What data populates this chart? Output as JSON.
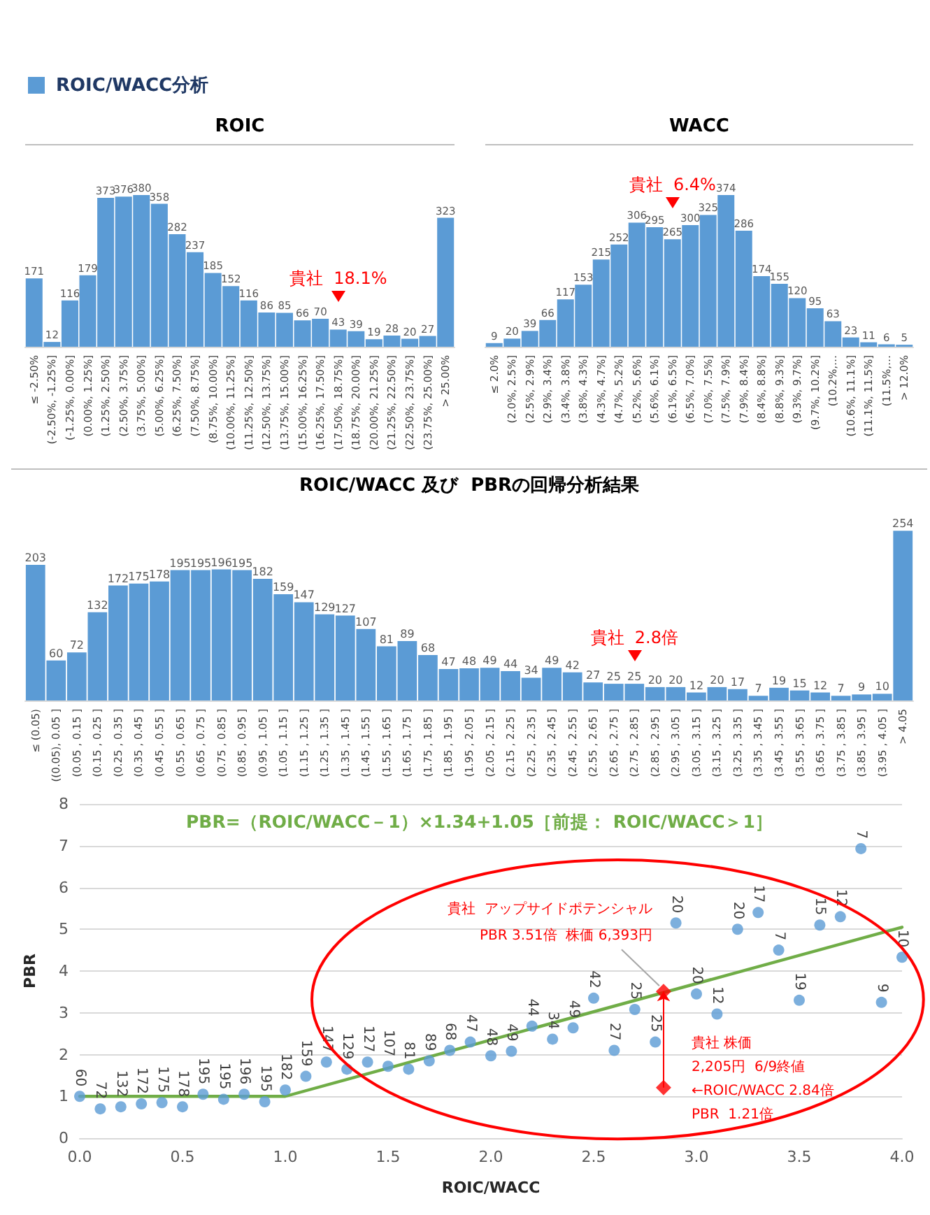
{
  "chart_data": [
    {
      "type": "bar",
      "title": "ROIC",
      "annotations": [
        "ROIC/WACC分析",
        {
          "text": "貴社  18.1%",
          "x": "(17.50%, 18.75%]",
          "y": 43
        }
      ],
      "categories": [
        "≤ -2.50%",
        "(-2.50%, -1.25%]",
        "(-1.25%, 0.00%]",
        "(0.00%, 1.25%]",
        "(1.25%, 2.50%]",
        "(2.50%, 3.75%]",
        "(3.75%, 5.00%]",
        "(5.00%, 6.25%]",
        "(6.25%, 7.50%]",
        "(7.50%, 8.75%]",
        "(8.75%, 10.00%]",
        "(10.00%, 11.25%]",
        "(11.25%, 12.50%]",
        "(12.50%, 13.75%]",
        "(13.75%, 15.00%]",
        "(15.00%, 16.25%]",
        "(16.25%, 17.50%]",
        "(17.50%, 18.75%]",
        "(18.75%, 20.00%]",
        "(20.00%, 21.25%]",
        "(21.25%, 22.50%]",
        "(22.50%, 23.75%]",
        "(23.75%, 25.00%]",
        "> 25.00%"
      ],
      "values": [
        171,
        12,
        116,
        179,
        373,
        376,
        380,
        358,
        282,
        237,
        185,
        152,
        116,
        86,
        85,
        66,
        70,
        43,
        39,
        19,
        28,
        20,
        27,
        323
      ],
      "color": "#5b9bd5",
      "data_labels": true
    },
    {
      "type": "bar",
      "title": "WACC",
      "annotations": [
        {
          "text": "貴社  6.4%",
          "x": "(6.1%, 6.5%]",
          "y": 265
        }
      ],
      "categories": [
        "≤ 2.0%",
        "(2.0%, 2.5%]",
        "(2.5%, 2.9%]",
        "(2.9%, 3.4%]",
        "(3.4%, 3.8%]",
        "(3.8%, 4.3%]",
        "(4.3%, 4.7%]",
        "(4.7%, 5.2%]",
        "(5.2%, 5.6%]",
        "(5.6%, 6.1%]",
        "(6.1%, 6.5%]",
        "(6.5%, 7.0%]",
        "(7.0%, 7.5%]",
        "(7.5%, 7.9%]",
        "(7.9%, 8.4%]",
        "(8.4%, 8.8%]",
        "(8.8%, 9.3%]",
        "(9.3%, 9.7%]",
        "(9.7%, 10.2%]",
        "(10.2%,…",
        "(10.6%, 11.1%]",
        "(11.1%, 11.5%]",
        "(11.5%,…",
        "> 12.0%"
      ],
      "values": [
        9,
        20,
        39,
        66,
        117,
        153,
        215,
        252,
        306,
        295,
        265,
        300,
        325,
        374,
        286,
        174,
        155,
        120,
        95,
        63,
        23,
        11,
        6,
        5
      ],
      "color": "#5b9bd5",
      "data_labels": true
    },
    {
      "type": "bar",
      "title": "ROIC/WACC 及び  PBRの回帰分析結果",
      "annotations": [
        {
          "text": "貴社  2.8倍",
          "x": "(2.75 , 2.85 ]",
          "y": 25
        }
      ],
      "categories": [
        "≤ (0.05)",
        "((0.05), 0.05 ]",
        "(0.05 , 0.15 ]",
        "(0.15 , 0.25 ]",
        "(0.25 , 0.35 ]",
        "(0.35 , 0.45 ]",
        "(0.45 , 0.55 ]",
        "(0.55 , 0.65 ]",
        "(0.65 , 0.75 ]",
        "(0.75 , 0.85 ]",
        "(0.85 , 0.95 ]",
        "(0.95 , 1.05 ]",
        "(1.05 , 1.15 ]",
        "(1.15 , 1.25 ]",
        "(1.25 , 1.35 ]",
        "(1.35 , 1.45 ]",
        "(1.45 , 1.55 ]",
        "(1.55 , 1.65 ]",
        "(1.65 , 1.75 ]",
        "(1.75 , 1.85 ]",
        "(1.85 , 1.95 ]",
        "(1.95 , 2.05 ]",
        "(2.05 , 2.15 ]",
        "(2.15 , 2.25 ]",
        "(2.25 , 2.35 ]",
        "(2.35 , 2.45 ]",
        "(2.45 , 2.55 ]",
        "(2.55 , 2.65 ]",
        "(2.65 , 2.75 ]",
        "(2.75 , 2.85 ]",
        "(2.85 , 2.95 ]",
        "(2.95 , 3.05 ]",
        "(3.05 , 3.15 ]",
        "(3.15 , 3.25 ]",
        "(3.25 , 3.35 ]",
        "(3.35 , 3.45 ]",
        "(3.45 , 3.55 ]",
        "(3.55 , 3.65 ]",
        "(3.65 , 3.75 ]",
        "(3.75 , 3.85 ]",
        "(3.85 , 3.95 ]",
        "(3.95 , 4.05 ]",
        "> 4.05"
      ],
      "values": [
        203,
        60,
        72,
        132,
        172,
        175,
        178,
        195,
        195,
        196,
        195,
        182,
        159,
        147,
        129,
        127,
        107,
        81,
        89,
        68,
        47,
        48,
        49,
        44,
        34,
        49,
        42,
        27,
        25,
        25,
        20,
        20,
        12,
        20,
        17,
        7,
        19,
        15,
        12,
        7,
        9,
        10,
        254
      ],
      "color": "#5b9bd5",
      "data_labels": true
    },
    {
      "type": "scatter",
      "xlabel": "ROIC/WACC",
      "ylabel": "PBR",
      "annotations": [
        "PBR=（ROIC/WACC－1）×1.34+1.05［前提： ROIC/WACC＞1］",
        {
          "text": "貴社  アップサイドポテンシャル\nPBR 3.51倍  株価 6,393円",
          "x": 2.84,
          "y": 3.51
        },
        {
          "text": "貴社 株価\n2,205円  6/9終値\n←ROIC/WACC 2.84倍\nPBR  1.21倍",
          "x": 2.84,
          "y": 1.21
        },
        {
          "text": "60",
          "x": 0,
          "y": 1.0
        },
        {
          "text": "72",
          "x": 0.1,
          "y": 0.7
        },
        {
          "text": "132",
          "x": 0.2,
          "y": 0.75
        },
        {
          "text": "172",
          "x": 0.3,
          "y": 0.82
        },
        {
          "text": "175",
          "x": 0.4,
          "y": 0.85
        },
        {
          "text": "178",
          "x": 0.5,
          "y": 0.75
        },
        {
          "text": "195",
          "x": 0.6,
          "y": 1.05
        },
        {
          "text": "195",
          "x": 0.7,
          "y": 0.93
        },
        {
          "text": "196",
          "x": 0.8,
          "y": 1.05
        },
        {
          "text": "195",
          "x": 0.9,
          "y": 0.87
        },
        {
          "text": "182",
          "x": 1.0,
          "y": 1.15
        },
        {
          "text": "159",
          "x": 1.1,
          "y": 1.48
        },
        {
          "text": "147",
          "x": 1.2,
          "y": 1.82
        },
        {
          "text": "129",
          "x": 1.3,
          "y": 1.65
        },
        {
          "text": "127",
          "x": 1.4,
          "y": 1.82
        },
        {
          "text": "107",
          "x": 1.5,
          "y": 1.72
        },
        {
          "text": "81",
          "x": 1.6,
          "y": 1.65
        },
        {
          "text": "89",
          "x": 1.7,
          "y": 1.85
        },
        {
          "text": "68",
          "x": 1.8,
          "y": 2.1
        },
        {
          "text": "47",
          "x": 1.9,
          "y": 2.3
        },
        {
          "text": "48",
          "x": 2.0,
          "y": 1.97
        },
        {
          "text": "49",
          "x": 2.1,
          "y": 2.08
        },
        {
          "text": "44",
          "x": 2.2,
          "y": 2.68
        },
        {
          "text": "34",
          "x": 2.3,
          "y": 2.37
        },
        {
          "text": "49",
          "x": 2.4,
          "y": 2.64
        },
        {
          "text": "42",
          "x": 2.5,
          "y": 3.35
        },
        {
          "text": "27",
          "x": 2.6,
          "y": 2.1
        },
        {
          "text": "25",
          "x": 2.7,
          "y": 3.08
        },
        {
          "text": "25",
          "x": 2.8,
          "y": 2.3
        },
        {
          "text": "20",
          "x": 2.9,
          "y": 5.15
        },
        {
          "text": "20",
          "x": 3.0,
          "y": 3.45
        },
        {
          "text": "12",
          "x": 3.1,
          "y": 2.97
        },
        {
          "text": "20",
          "x": 3.2,
          "y": 5.0
        },
        {
          "text": "17",
          "x": 3.3,
          "y": 5.4
        },
        {
          "text": "7",
          "x": 3.4,
          "y": 4.5
        },
        {
          "text": "19",
          "x": 3.5,
          "y": 3.3
        },
        {
          "text": "15",
          "x": 3.6,
          "y": 5.1
        },
        {
          "text": "12",
          "x": 3.7,
          "y": 5.3
        },
        {
          "text": "7",
          "x": 3.8,
          "y": 6.93
        },
        {
          "text": "9",
          "x": 3.9,
          "y": 3.25
        },
        {
          "text": "10",
          "x": 4.0,
          "y": 4.33
        }
      ],
      "xlim": [
        0,
        4
      ],
      "ylim": [
        0,
        8
      ],
      "xticks": [
        {
          "value": 0,
          "label": "0.0"
        },
        {
          "value": 0.5,
          "label": "0.5"
        },
        {
          "value": 1,
          "label": "1.0"
        },
        {
          "value": 1.5,
          "label": "1.5"
        },
        {
          "value": 2,
          "label": "2.0"
        },
        {
          "value": 2.5,
          "label": "2.5"
        },
        {
          "value": 3,
          "label": "3.0"
        },
        {
          "value": 3.5,
          "label": "3.5"
        },
        {
          "value": 4,
          "label": "4.0"
        }
      ],
      "yticks": [
        0,
        1,
        2,
        3,
        4,
        5,
        6,
        7,
        8
      ],
      "grid": "y",
      "marker": "circle",
      "series": [
        {
          "type": "scatter",
          "color": "#5b9bd5",
          "x": [
            0,
            0.1,
            0.2,
            0.3,
            0.4,
            0.5,
            0.6,
            0.7,
            0.8,
            0.9,
            1.0,
            1.1,
            1.2,
            1.3,
            1.4,
            1.5,
            1.6,
            1.7,
            1.8,
            1.9,
            2.0,
            2.1,
            2.2,
            2.3,
            2.4,
            2.5,
            2.6,
            2.7,
            2.8,
            2.9,
            3.0,
            3.1,
            3.2,
            3.3,
            3.4,
            3.5,
            3.6,
            3.7,
            3.8,
            3.9,
            4.0
          ],
          "values": [
            1.0,
            0.7,
            0.75,
            0.82,
            0.85,
            0.75,
            1.05,
            0.93,
            1.05,
            0.87,
            1.15,
            1.48,
            1.82,
            1.65,
            1.82,
            1.72,
            1.65,
            1.85,
            2.1,
            2.3,
            1.97,
            2.08,
            2.68,
            2.37,
            2.64,
            3.35,
            2.1,
            3.08,
            2.3,
            5.15,
            3.45,
            2.97,
            5.0,
            5.4,
            4.5,
            3.3,
            5.1,
            5.3,
            6.93,
            3.25,
            4.33
          ]
        },
        {
          "type": "line",
          "color": "#70ad47",
          "marker": "none",
          "line_style": "solid",
          "x": [
            0,
            1,
            4
          ],
          "values": [
            1.0,
            1.0,
            5.05
          ]
        },
        {
          "type": "scatter",
          "color": "#ff0000",
          "marker": "diamond",
          "x": [
            2.84,
            2.84
          ],
          "values": [
            3.51,
            1.21
          ]
        }
      ]
    }
  ]
}
